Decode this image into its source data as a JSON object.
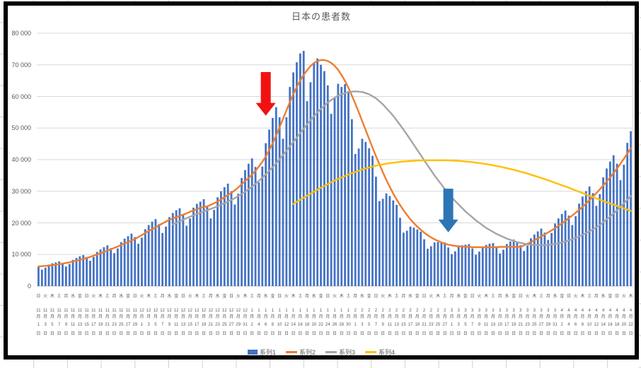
{
  "chart_data": {
    "type": "bar",
    "combo": "daily bars with three smoothed line series",
    "title": "日本の患者数",
    "legend_position": "bottom",
    "y_axis": {
      "min": 0,
      "max": 80000,
      "step": 10000,
      "tick_labels": [
        "0",
        "10 000",
        "20 000",
        "30 000",
        "40 000",
        "50 000",
        "60 000",
        "70 000",
        "80 000"
      ]
    },
    "x_axis": {
      "start_date": "11月1日",
      "end_date": "4月22日",
      "label_every_n_days": 2,
      "labels": [
        [
          "日",
          "11",
          "1"
        ],
        [
          "火",
          "11",
          "3"
        ],
        [
          "木",
          "11",
          "5"
        ],
        [
          "土",
          "11",
          "7"
        ],
        [
          "月",
          "11",
          "9"
        ],
        [
          "水",
          "11",
          "11"
        ],
        [
          "金",
          "11",
          "13"
        ],
        [
          "日",
          "11",
          "15"
        ],
        [
          "火",
          "11",
          "17"
        ],
        [
          "木",
          "11",
          "19"
        ],
        [
          "土",
          "11",
          "21"
        ],
        [
          "月",
          "11",
          "23"
        ],
        [
          "水",
          "11",
          "25"
        ],
        [
          "金",
          "11",
          "27"
        ],
        [
          "日",
          "11",
          "29"
        ],
        [
          "火",
          "12",
          "1"
        ],
        [
          "木",
          "12",
          "3"
        ],
        [
          "土",
          "12",
          "5"
        ],
        [
          "月",
          "12",
          "7"
        ],
        [
          "水",
          "12",
          "9"
        ],
        [
          "金",
          "12",
          "11"
        ],
        [
          "日",
          "12",
          "13"
        ],
        [
          "火",
          "12",
          "15"
        ],
        [
          "木",
          "12",
          "17"
        ],
        [
          "土",
          "12",
          "19"
        ],
        [
          "月",
          "12",
          "21"
        ],
        [
          "水",
          "12",
          "23"
        ],
        [
          "金",
          "12",
          "25"
        ],
        [
          "日",
          "12",
          "27"
        ],
        [
          "火",
          "12",
          "29"
        ],
        [
          "木",
          "12",
          "31"
        ],
        [
          "土",
          "1",
          "2"
        ],
        [
          "月",
          "1",
          "4"
        ],
        [
          "水",
          "1",
          "6"
        ],
        [
          "金",
          "1",
          "8"
        ],
        [
          "日",
          "1",
          "10"
        ],
        [
          "火",
          "1",
          "12"
        ],
        [
          "木",
          "1",
          "14"
        ],
        [
          "土",
          "1",
          "16"
        ],
        [
          "月",
          "1",
          "18"
        ],
        [
          "水",
          "1",
          "20"
        ],
        [
          "金",
          "1",
          "22"
        ],
        [
          "日",
          "1",
          "24"
        ],
        [
          "火",
          "1",
          "26"
        ],
        [
          "木",
          "1",
          "28"
        ],
        [
          "土",
          "1",
          "30"
        ],
        [
          "月",
          "2",
          "1"
        ],
        [
          "水",
          "2",
          "3"
        ],
        [
          "金",
          "2",
          "5"
        ],
        [
          "日",
          "2",
          "7"
        ],
        [
          "火",
          "2",
          "9"
        ],
        [
          "木",
          "2",
          "11"
        ],
        [
          "土",
          "2",
          "13"
        ],
        [
          "月",
          "2",
          "15"
        ],
        [
          "水",
          "2",
          "17"
        ],
        [
          "金",
          "2",
          "19"
        ],
        [
          "日",
          "2",
          "21"
        ],
        [
          "火",
          "2",
          "23"
        ],
        [
          "木",
          "2",
          "25"
        ],
        [
          "土",
          "2",
          "27"
        ],
        [
          "月",
          "3",
          "1"
        ],
        [
          "水",
          "3",
          "3"
        ],
        [
          "金",
          "3",
          "5"
        ],
        [
          "日",
          "3",
          "7"
        ],
        [
          "火",
          "3",
          "9"
        ],
        [
          "木",
          "3",
          "11"
        ],
        [
          "土",
          "3",
          "13"
        ],
        [
          "月",
          "3",
          "15"
        ],
        [
          "水",
          "3",
          "17"
        ],
        [
          "金",
          "3",
          "19"
        ],
        [
          "日",
          "3",
          "21"
        ],
        [
          "火",
          "3",
          "23"
        ],
        [
          "木",
          "3",
          "25"
        ],
        [
          "土",
          "3",
          "27"
        ],
        [
          "月",
          "3",
          "29"
        ],
        [
          "水",
          "3",
          "31"
        ],
        [
          "金",
          "4",
          "2"
        ],
        [
          "日",
          "4",
          "4"
        ],
        [
          "火",
          "4",
          "6"
        ],
        [
          "木",
          "4",
          "8"
        ],
        [
          "土",
          "4",
          "10"
        ],
        [
          "月",
          "4",
          "12"
        ],
        [
          "水",
          "4",
          "14"
        ],
        [
          "金",
          "4",
          "16"
        ],
        [
          "日",
          "4",
          "18"
        ],
        [
          "火",
          "4",
          "20"
        ],
        [
          "木",
          "4",
          "22"
        ]
      ]
    },
    "series": [
      {
        "name": "系列1",
        "type": "bar",
        "color": "#4472C4",
        "values": [
          6100,
          5200,
          5800,
          6800,
          7200,
          7500,
          7800,
          7200,
          6200,
          7000,
          8300,
          8900,
          9400,
          9800,
          9200,
          8000,
          9200,
          10800,
          11600,
          12300,
          12900,
          12000,
          10400,
          11900,
          13900,
          15000,
          15800,
          16600,
          15500,
          13400,
          15300,
          18000,
          19300,
          20400,
          21200,
          19600,
          16800,
          18800,
          21800,
          23100,
          24000,
          24600,
          22600,
          19100,
          21400,
          24800,
          26000,
          26700,
          27500,
          25200,
          21400,
          24100,
          28100,
          30000,
          31300,
          32400,
          30000,
          25800,
          29200,
          34200,
          36700,
          38700,
          40400,
          37700,
          32800,
          37800,
          45200,
          49500,
          53200,
          56600,
          53400,
          46600,
          53400,
          63000,
          67600,
          70800,
          73600,
          74400,
          58500,
          64500,
          70500,
          72000,
          70000,
          68000,
          63500,
          54500,
          59500,
          64000,
          63000,
          63900,
          61700,
          52800,
          41800,
          43500,
          46600,
          45600,
          43600,
          41200,
          34600,
          26900,
          27600,
          29300,
          28500,
          27100,
          25700,
          21600,
          16900,
          17500,
          18800,
          18500,
          17900,
          17200,
          14800,
          11800,
          12600,
          13800,
          13900,
          13900,
          13800,
          12200,
          10100,
          11000,
          12400,
          12900,
          13100,
          13300,
          11900,
          9900,
          10900,
          12500,
          13000,
          13400,
          13600,
          12300,
          10300,
          11500,
          13300,
          14100,
          14700,
          13800,
          12900,
          11100,
          12800,
          15100,
          16300,
          17300,
          18200,
          16900,
          14600,
          16800,
          19800,
          21400,
          22800,
          23900,
          22300,
          19300,
          22100,
          26100,
          28300,
          30000,
          31500,
          29400,
          25400,
          29100,
          34400,
          37200,
          39400,
          41400,
          38700,
          33500,
          38400,
          45300,
          49000
        ]
      },
      {
        "name": "系列2",
        "type": "line",
        "color": "#ED7D31",
        "values": [
          6200,
          6300,
          6400,
          6500,
          6600,
          6800,
          6900,
          7100,
          7300,
          7500,
          7800,
          8000,
          8300,
          8600,
          8900,
          9200,
          9600,
          10000,
          10400,
          10800,
          11200,
          11600,
          12100,
          12500,
          13000,
          13500,
          13900,
          14400,
          14900,
          15500,
          16100,
          16800,
          17400,
          18000,
          18600,
          19200,
          19800,
          20400,
          21000,
          21400,
          21800,
          22200,
          22600,
          23000,
          23500,
          23900,
          24300,
          24800,
          25000,
          25200,
          25700,
          26200,
          26800,
          27400,
          28100,
          28800,
          29500,
          30300,
          31200,
          32200,
          33200,
          34200,
          35300,
          36500,
          37800,
          39300,
          41000,
          43000,
          45200,
          47600,
          50200,
          52900,
          55600,
          58200,
          60700,
          63000,
          65000,
          66800,
          68300,
          69600,
          70600,
          71200,
          71500,
          71500,
          71200,
          70600,
          69700,
          68400,
          66800,
          64900,
          62700,
          60300,
          57700,
          55000,
          52200,
          49400,
          46600,
          43800,
          41100,
          38500,
          36000,
          33600,
          31400,
          29300,
          27400,
          25600,
          24000,
          22500,
          21100,
          19900,
          18800,
          17800,
          16900,
          16100,
          15400,
          14800,
          14300,
          13800,
          13400,
          13100,
          12900,
          12700,
          12600,
          12500,
          12400,
          12400,
          12300,
          12300,
          12300,
          12300,
          12300,
          12300,
          12300,
          12300,
          12400,
          12400,
          12400,
          12400,
          12400,
          12400,
          12400,
          12900,
          13400,
          13900,
          14500,
          15100,
          15700,
          16300,
          17000,
          17600,
          18300,
          19100,
          19800,
          20600,
          21500,
          22300,
          23200,
          24100,
          25100,
          26100,
          27200,
          28300,
          29400,
          30600,
          31800,
          33100,
          34400,
          35800,
          37200,
          38700,
          40300,
          41900,
          43600
        ]
      },
      {
        "name": "系列3",
        "type": "line",
        "color": "#A5A5A5",
        "keypoints": [
          [
            39,
            19500
          ],
          [
            42,
            21000
          ],
          [
            45,
            22400
          ],
          [
            48,
            23600
          ],
          [
            51,
            24800
          ],
          [
            54,
            26200
          ],
          [
            57,
            27800
          ],
          [
            60,
            29800
          ],
          [
            63,
            32300
          ],
          [
            66,
            35300
          ],
          [
            69,
            38800
          ],
          [
            72,
            42800
          ],
          [
            75,
            47000
          ],
          [
            78,
            51200
          ],
          [
            81,
            55000
          ],
          [
            84,
            58100
          ],
          [
            87,
            60300
          ],
          [
            90,
            61400
          ],
          [
            92,
            61600
          ],
          [
            94,
            61400
          ],
          [
            96,
            60700
          ],
          [
            98,
            59400
          ],
          [
            100,
            57500
          ],
          [
            103,
            53900
          ],
          [
            106,
            49500
          ],
          [
            109,
            44700
          ],
          [
            112,
            39800
          ],
          [
            115,
            35000
          ],
          [
            118,
            30700
          ],
          [
            121,
            26900
          ],
          [
            124,
            23600
          ],
          [
            127,
            20800
          ],
          [
            130,
            18400
          ],
          [
            133,
            16500
          ],
          [
            136,
            15000
          ],
          [
            139,
            13900
          ],
          [
            142,
            13200
          ],
          [
            145,
            12900
          ],
          [
            148,
            13000
          ],
          [
            151,
            13500
          ],
          [
            154,
            14400
          ],
          [
            157,
            15700
          ],
          [
            160,
            17300
          ],
          [
            163,
            19300
          ],
          [
            166,
            22000
          ],
          [
            169,
            25000
          ],
          [
            172,
            28500
          ]
        ]
      },
      {
        "name": "系列4",
        "type": "line",
        "color": "#FFC000",
        "keypoints": [
          [
            74,
            26000
          ],
          [
            78,
            28600
          ],
          [
            82,
            31100
          ],
          [
            86,
            33400
          ],
          [
            90,
            35300
          ],
          [
            94,
            36900
          ],
          [
            98,
            38100
          ],
          [
            102,
            38900
          ],
          [
            106,
            39400
          ],
          [
            110,
            39700
          ],
          [
            114,
            39800
          ],
          [
            118,
            39800
          ],
          [
            122,
            39600
          ],
          [
            126,
            39200
          ],
          [
            130,
            38600
          ],
          [
            134,
            37800
          ],
          [
            138,
            36800
          ],
          [
            142,
            35600
          ],
          [
            146,
            34200
          ],
          [
            150,
            32700
          ],
          [
            154,
            31100
          ],
          [
            158,
            29400
          ],
          [
            162,
            27700
          ],
          [
            166,
            26100
          ],
          [
            169,
            25000
          ],
          [
            172,
            23800
          ]
        ]
      }
    ],
    "annotations": [
      {
        "shape": "down-arrow",
        "name": "red-down-arrow",
        "color": "#F21111",
        "day": 66,
        "value_top": 67700,
        "value_tip": 53900
      },
      {
        "shape": "down-arrow",
        "name": "blue-down-arrow",
        "color": "#2E75B6",
        "day": 119,
        "value_top": 30800,
        "value_tip": 17000
      }
    ],
    "colors": {
      "gridline": "#D9D9D9",
      "axis_line": "#BFBFBF",
      "text": "#595959",
      "chart_border": "#000000",
      "sheet_gridline_stub": "#CFCFCF",
      "background": "#FFFFFF"
    }
  }
}
